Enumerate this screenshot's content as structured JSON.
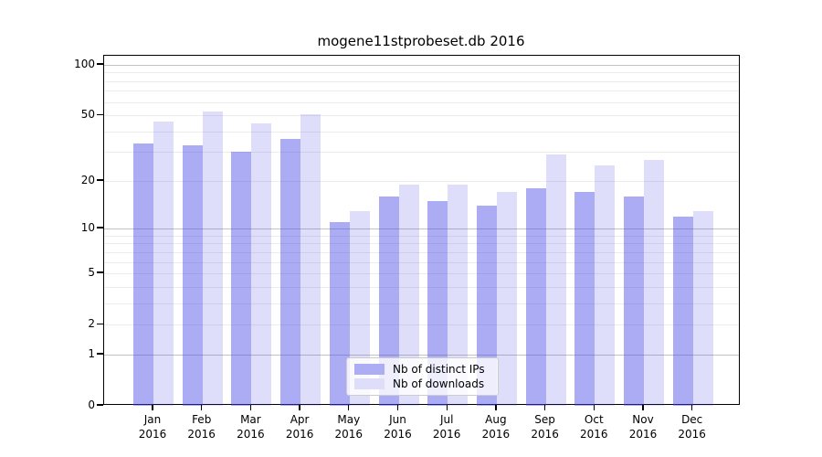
{
  "chart_data": {
    "type": "bar",
    "title": "mogene11stprobeset.db 2016",
    "categories": [
      "Jan 2016",
      "Feb 2016",
      "Mar 2016",
      "Apr 2016",
      "May 2016",
      "Jun 2016",
      "Jul 2016",
      "Aug 2016",
      "Sep 2016",
      "Oct 2016",
      "Nov 2016",
      "Dec 2016"
    ],
    "series": [
      {
        "name": "Nb of distinct IPs",
        "values": [
          34,
          33,
          30,
          36,
          11,
          16,
          15,
          14,
          18,
          17,
          16,
          12
        ]
      },
      {
        "name": "Nb of downloads",
        "values": [
          46,
          53,
          45,
          51,
          13,
          19,
          19,
          17,
          29,
          25,
          27,
          13
        ]
      }
    ],
    "xlabel": "",
    "ylabel": "",
    "yscale": "log1p",
    "ylim": [
      0,
      113
    ],
    "yticks": [
      0,
      1,
      2,
      5,
      10,
      20,
      50,
      100
    ],
    "major_gridlines": [
      1,
      10,
      100
    ],
    "minor_gridlines": [
      2,
      3,
      4,
      5,
      6,
      7,
      8,
      9,
      20,
      30,
      40,
      50,
      60,
      70,
      80,
      90
    ],
    "grid": true,
    "legend_position": "lower-center"
  },
  "colors": {
    "bar_ips_fill": "rgba(70,70,230,0.45)",
    "bar_downloads_fill": "rgba(70,70,230,0.18)",
    "swatch_ips": "#adadf4",
    "swatch_downloads": "#dedefa",
    "grid_major": "#c3c3c3",
    "grid_minor": "#ececec",
    "axis": "#000000"
  }
}
